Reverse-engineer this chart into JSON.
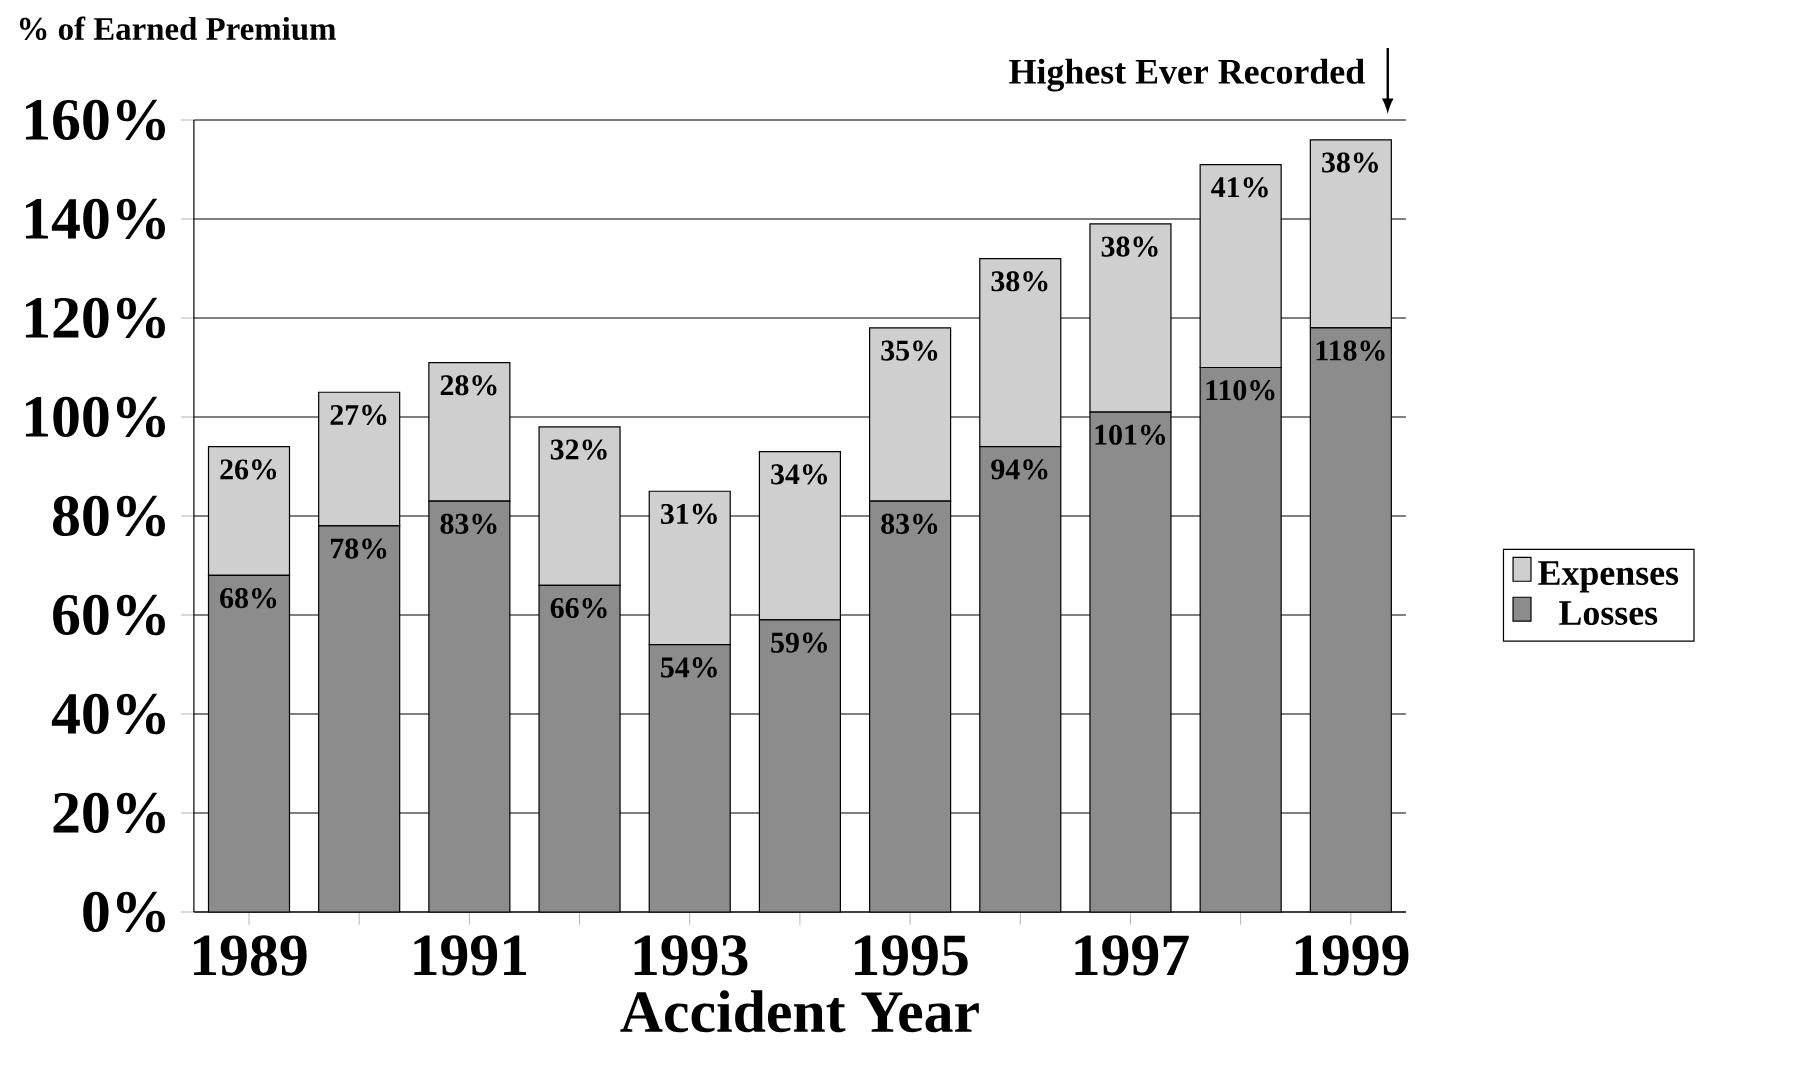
{
  "chart_data": {
    "type": "bar",
    "stacked": true,
    "ylabel": "% of Earned Premium",
    "xlabel": "Accident Year",
    "categories": [
      "1989",
      null,
      "1991",
      null,
      "1993",
      null,
      "1995",
      null,
      "1997",
      null,
      "1999"
    ],
    "series": [
      {
        "name": "Losses",
        "color": "#8c8c8c",
        "values": [
          68,
          78,
          83,
          66,
          54,
          59,
          83,
          94,
          101,
          110,
          118
        ],
        "value_labels": [
          "68%",
          "78%",
          "83%",
          "66%",
          "54%",
          "59%",
          "83%",
          "94%",
          "101%",
          "110%",
          "118%"
        ]
      },
      {
        "name": "Expenses",
        "color": "#cfcfcf",
        "values": [
          26,
          27,
          28,
          32,
          31,
          34,
          35,
          38,
          38,
          41,
          38
        ],
        "value_labels": [
          "26%",
          "27%",
          "28%",
          "32%",
          "31%",
          "34%",
          "35%",
          "38%",
          "38%",
          "41%",
          "38%"
        ]
      }
    ],
    "ylim": [
      0,
      160
    ],
    "yticks": [
      {
        "value": 0,
        "label": "0%"
      },
      {
        "value": 20,
        "label": "20%"
      },
      {
        "value": 40,
        "label": "40%"
      },
      {
        "value": 60,
        "label": "60%"
      },
      {
        "value": 80,
        "label": "80%"
      },
      {
        "value": 100,
        "label": "100%"
      },
      {
        "value": 120,
        "label": "120%"
      },
      {
        "value": 140,
        "label": "140%"
      },
      {
        "value": 160,
        "label": "160%"
      }
    ],
    "grid": "y",
    "legend": "right",
    "data_labels": true,
    "annotations": [
      "Highest Ever Recorded"
    ]
  }
}
